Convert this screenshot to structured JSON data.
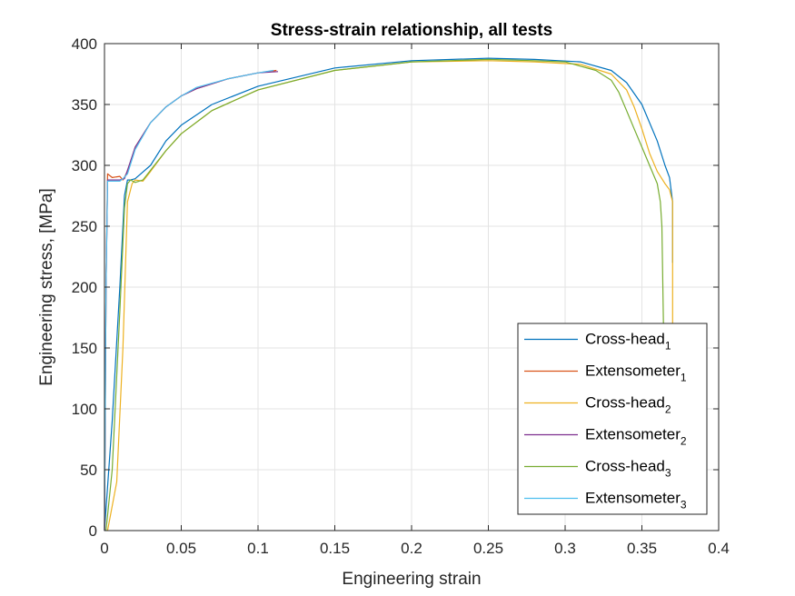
{
  "chart_data": {
    "type": "line",
    "title": "Stress-strain relationship, all tests",
    "xlabel": "Engineering strain",
    "ylabel": "Engineering stress, [MPa]",
    "xlim": [
      0,
      0.4
    ],
    "ylim": [
      0,
      400
    ],
    "xticks": [
      "0",
      "0.05",
      "0.1",
      "0.15",
      "0.2",
      "0.25",
      "0.3",
      "0.35",
      "0.4"
    ],
    "yticks": [
      "0",
      "50",
      "100",
      "150",
      "200",
      "250",
      "300",
      "350",
      "400"
    ],
    "grid": true,
    "legend_position": "bottom-right",
    "series": [
      {
        "name": "Cross-head",
        "sub": "1",
        "color": "#0072BD",
        "x": [
          0,
          0.005,
          0.01,
          0.013,
          0.015,
          0.017,
          0.02,
          0.03,
          0.04,
          0.05,
          0.07,
          0.1,
          0.15,
          0.2,
          0.25,
          0.28,
          0.31,
          0.33,
          0.34,
          0.35,
          0.36,
          0.365,
          0.368,
          0.37,
          0.37
        ],
        "y": [
          0,
          90,
          200,
          275,
          288,
          288,
          289,
          300,
          320,
          333,
          350,
          365,
          380,
          386,
          388,
          387,
          385,
          378,
          368,
          350,
          320,
          300,
          290,
          270,
          220
        ]
      },
      {
        "name": "Extensometer",
        "sub": "1",
        "color": "#D95319",
        "x": [
          0,
          0.001,
          0.002,
          0.005,
          0.01,
          0.012,
          0.015,
          0.02,
          0.03,
          0.04,
          0.05,
          0.06,
          0.08,
          0.1,
          0.112
        ],
        "y": [
          0,
          200,
          293,
          290,
          291,
          288,
          295,
          315,
          335,
          348,
          357,
          363,
          371,
          376,
          378
        ]
      },
      {
        "name": "Cross-head",
        "sub": "2",
        "color": "#EDB120",
        "x": [
          0.002,
          0.008,
          0.012,
          0.015,
          0.018,
          0.02,
          0.025,
          0.03,
          0.04,
          0.05,
          0.07,
          0.1,
          0.15,
          0.2,
          0.25,
          0.28,
          0.31,
          0.33,
          0.34,
          0.345,
          0.35,
          0.355,
          0.36,
          0.365,
          0.368,
          0.37,
          0.37
        ],
        "y": [
          0,
          40,
          150,
          270,
          285,
          288,
          287,
          295,
          312,
          326,
          345,
          362,
          378,
          385,
          386,
          385,
          383,
          375,
          362,
          348,
          330,
          310,
          295,
          285,
          280,
          270,
          170
        ]
      },
      {
        "name": "Extensometer",
        "sub": "2",
        "color": "#7E2F8E",
        "x": [
          0,
          0.001,
          0.002,
          0.005,
          0.01,
          0.013,
          0.015,
          0.02,
          0.03,
          0.04,
          0.05,
          0.06,
          0.08,
          0.1,
          0.113
        ],
        "y": [
          0,
          200,
          288,
          288,
          288,
          289,
          296,
          315,
          335,
          348,
          357,
          363,
          371,
          376,
          377
        ]
      },
      {
        "name": "Cross-head",
        "sub": "3",
        "color": "#77AC30",
        "x": [
          0.001,
          0.005,
          0.01,
          0.013,
          0.015,
          0.017,
          0.02,
          0.025,
          0.03,
          0.04,
          0.05,
          0.07,
          0.1,
          0.15,
          0.2,
          0.25,
          0.28,
          0.3,
          0.32,
          0.33,
          0.335,
          0.34,
          0.345,
          0.35,
          0.355,
          0.36,
          0.362,
          0.363,
          0.364
        ],
        "y": [
          0,
          50,
          180,
          265,
          285,
          288,
          286,
          288,
          296,
          312,
          326,
          345,
          362,
          378,
          385,
          387,
          386,
          385,
          378,
          370,
          360,
          345,
          330,
          315,
          300,
          285,
          270,
          250,
          170
        ]
      },
      {
        "name": "Extensometer",
        "sub": "3",
        "color": "#4DBEEE",
        "x": [
          0,
          0.001,
          0.002,
          0.005,
          0.01,
          0.012,
          0.015,
          0.02,
          0.03,
          0.04,
          0.05,
          0.06,
          0.08,
          0.1,
          0.11
        ],
        "y": [
          0,
          200,
          287,
          287,
          287,
          289,
          293,
          313,
          335,
          348,
          357,
          364,
          371,
          376,
          378
        ]
      }
    ]
  }
}
